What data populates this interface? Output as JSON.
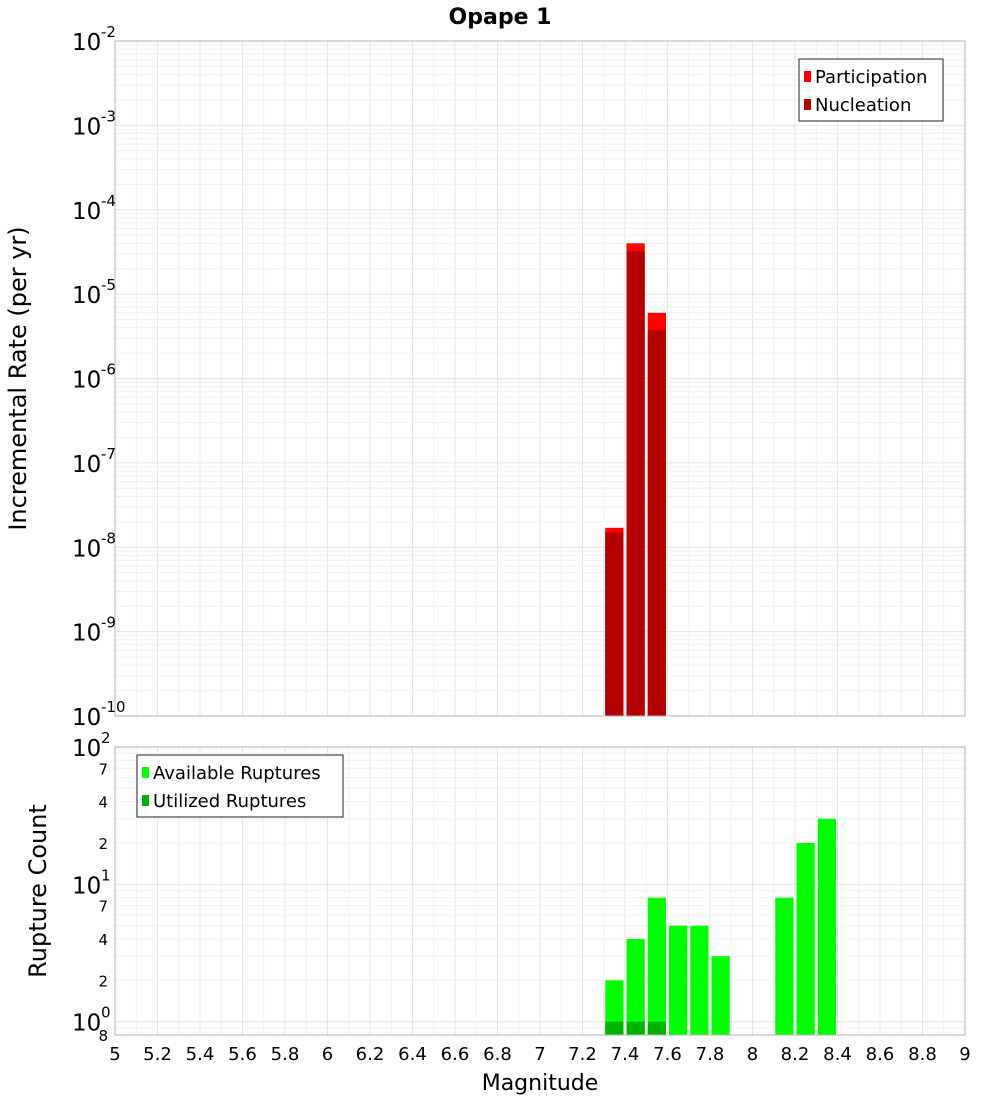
{
  "chart_data": [
    {
      "type": "bar",
      "title": "Opape 1",
      "ylabel": "Incremental Rate (per yr)",
      "xlabel": "",
      "yscale": "log",
      "xlim": [
        5,
        9
      ],
      "ylim": [
        1e-10,
        0.01
      ],
      "bin_width": 0.1,
      "legend": {
        "placement": "top-right",
        "entries": [
          "Participation",
          "Nucleation"
        ]
      },
      "grid": true,
      "series": [
        {
          "name": "Participation",
          "color": "#ff0000",
          "x": [
            7.35,
            7.45,
            7.55
          ],
          "values": [
            1.7e-08,
            4e-05,
            6e-06
          ]
        },
        {
          "name": "Nucleation",
          "color": "#b30000",
          "x": [
            7.35,
            7.45,
            7.55
          ],
          "values": [
            1.5e-08,
            3.2e-05,
            3.8e-06
          ]
        }
      ]
    },
    {
      "type": "bar",
      "title": "",
      "ylabel": "Rupture Count",
      "xlabel": "Magnitude",
      "yscale": "log",
      "xlim": [
        5,
        9
      ],
      "ylim": [
        0.8,
        100
      ],
      "bin_width": 0.1,
      "legend": {
        "placement": "top-left",
        "entries": [
          "Available Ruptures",
          "Utilized Ruptures"
        ]
      },
      "grid": true,
      "series": [
        {
          "name": "Available Ruptures",
          "color": "#00ff00",
          "x": [
            7.35,
            7.45,
            7.55,
            7.65,
            7.75,
            7.85,
            8.15,
            8.25,
            8.35
          ],
          "values": [
            2,
            4,
            8,
            5,
            5,
            3,
            8,
            20,
            30
          ]
        },
        {
          "name": "Utilized Ruptures",
          "color": "#00b300",
          "x": [
            7.35,
            7.45,
            7.55
          ],
          "values": [
            1,
            1,
            1
          ]
        }
      ]
    }
  ],
  "axes": {
    "x_ticks": [
      "5",
      "5.2",
      "5.4",
      "5.6",
      "5.8",
      "6",
      "6.2",
      "6.4",
      "6.6",
      "6.8",
      "7",
      "7.2",
      "7.4",
      "7.6",
      "7.8",
      "8",
      "8.2",
      "8.4",
      "8.6",
      "8.8",
      "9"
    ],
    "top_y_ticks": [
      {
        "base": "10",
        "exp": "-10",
        "value": 1e-10
      },
      {
        "base": "10",
        "exp": "-9",
        "value": 1e-09
      },
      {
        "base": "10",
        "exp": "-8",
        "value": 1e-08
      },
      {
        "base": "10",
        "exp": "-7",
        "value": 1e-07
      },
      {
        "base": "10",
        "exp": "-6",
        "value": 1e-06
      },
      {
        "base": "10",
        "exp": "-5",
        "value": 1e-05
      },
      {
        "base": "10",
        "exp": "-4",
        "value": 0.0001
      },
      {
        "base": "10",
        "exp": "-3",
        "value": 0.001
      },
      {
        "base": "10",
        "exp": "-2",
        "value": 0.01
      }
    ],
    "bottom_y_ticks_major": [
      {
        "base": "10",
        "exp": "0",
        "value": 1
      },
      {
        "base": "10",
        "exp": "1",
        "value": 10
      },
      {
        "base": "10",
        "exp": "2",
        "value": 100
      }
    ],
    "bottom_y_ticks_minor": [
      {
        "label": "8",
        "value": 0.8
      },
      {
        "label": "2",
        "value": 2
      },
      {
        "label": "4",
        "value": 4
      },
      {
        "label": "7",
        "value": 7
      },
      {
        "label": "2",
        "value": 20
      },
      {
        "label": "4",
        "value": 40
      },
      {
        "label": "7",
        "value": 70
      }
    ]
  }
}
